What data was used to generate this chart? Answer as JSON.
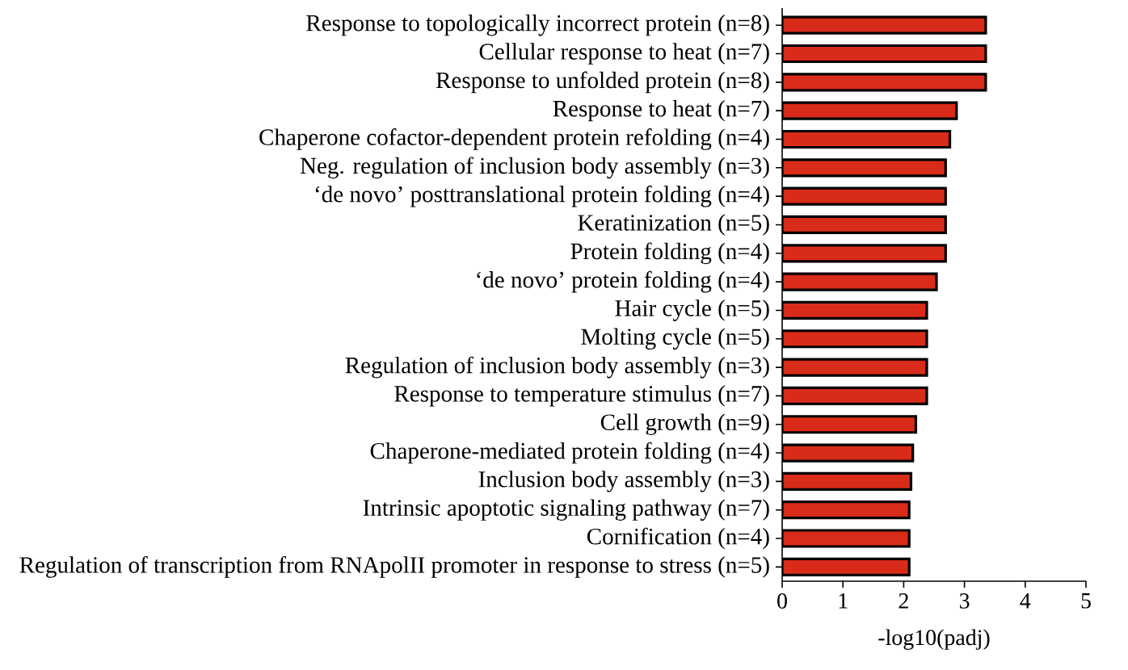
{
  "chart_data": {
    "type": "bar",
    "orientation": "horizontal",
    "xlabel": "-log10(padj)",
    "categories": [
      "Response to topologically incorrect protein (n=8)",
      "Cellular response to heat (n=7)",
      "Response to unfolded protein (n=8)",
      "Response to heat (n=7)",
      "Chaperone cofactor-dependent protein refolding (n=4)",
      "Neg. regulation of inclusion body assembly (n=3)",
      "‘de novo’ posttranslational protein folding (n=4)",
      "Keratinization (n=5)",
      "Protein folding (n=4)",
      "‘de novo’ protein folding (n=4)",
      "Hair cycle (n=5)",
      "Molting cycle (n=5)",
      "Regulation of inclusion body assembly (n=3)",
      "Response to temperature stimulus (n=7)",
      "Cell growth (n=9)",
      "Chaperone-mediated protein folding (n=4)",
      "Inclusion body assembly (n=3)",
      "Intrinsic apoptotic signaling pathway (n=7)",
      "Cornification (n=4)",
      "Regulation of transcription from RNApolII promoter in response to stress (n=5)"
    ],
    "values": [
      3.35,
      3.35,
      3.35,
      2.87,
      2.76,
      2.69,
      2.69,
      2.69,
      2.69,
      2.54,
      2.38,
      2.38,
      2.38,
      2.38,
      2.2,
      2.15,
      2.12,
      2.09,
      2.09,
      2.09
    ],
    "color": "#d92b1a",
    "xlim": [
      0,
      5
    ],
    "xticks": [
      0,
      1,
      2,
      3,
      4,
      5
    ],
    "grid": false
  }
}
